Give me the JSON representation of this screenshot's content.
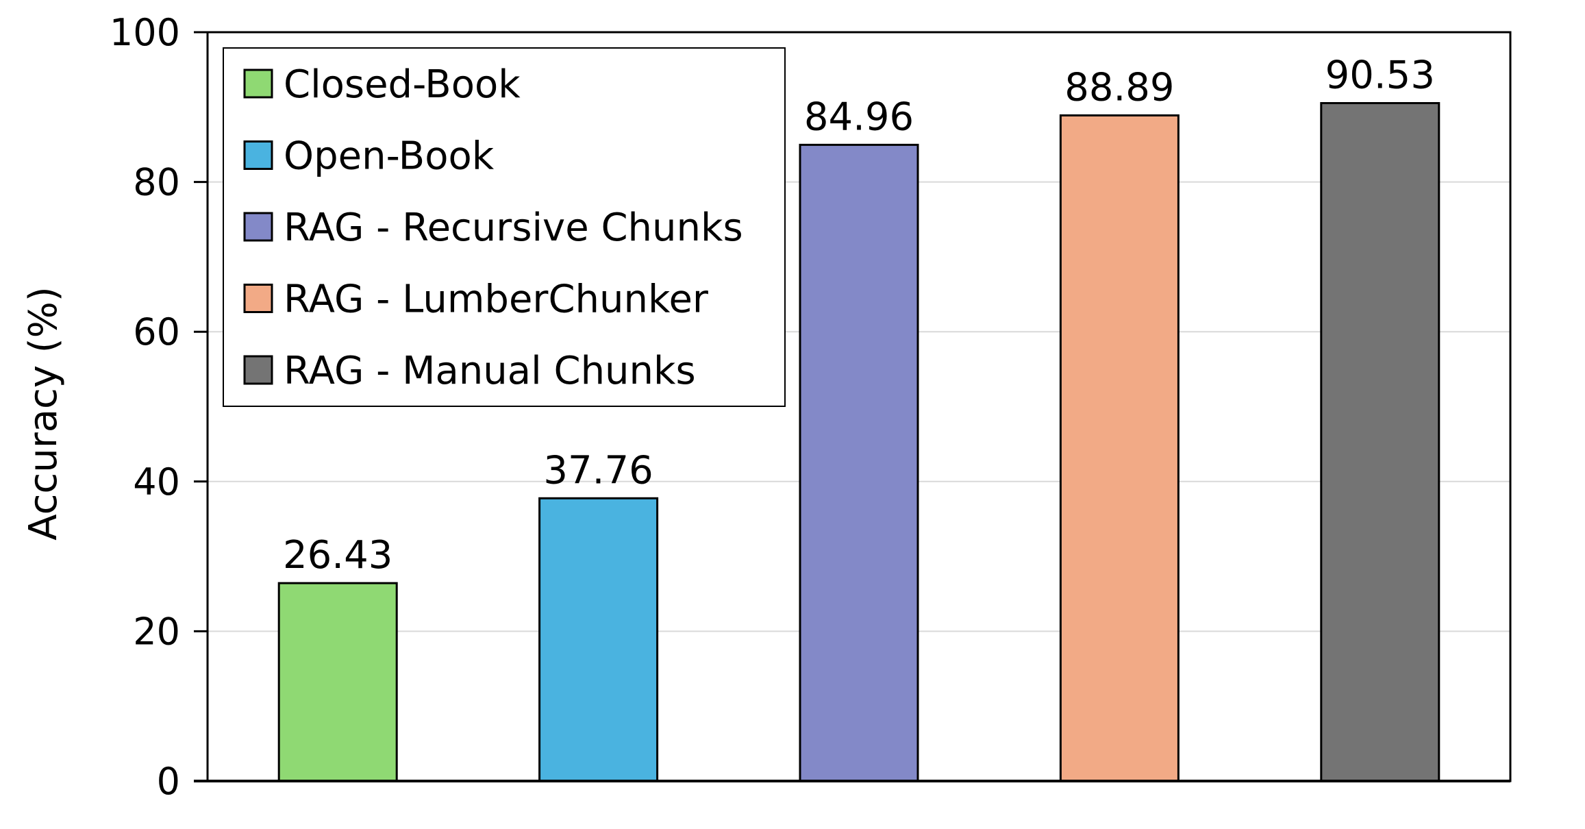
{
  "chart_data": {
    "type": "bar",
    "title": "",
    "xlabel": "",
    "ylabel": "Accuracy (%)",
    "ylim": [
      0,
      100
    ],
    "yticks": [
      0,
      20,
      40,
      60,
      80,
      100
    ],
    "grid": "horizontal",
    "legend_position": "top-left",
    "data_labels": true,
    "series": [
      {
        "name": "Closed-Book",
        "value": 26.43,
        "label": "26.43",
        "color": "#8fd973"
      },
      {
        "name": "Open-Book",
        "value": 37.76,
        "label": "37.76",
        "color": "#4ab3e0"
      },
      {
        "name": "RAG - Recursive Chunks",
        "value": 84.96,
        "label": "84.96",
        "color": "#8389c8"
      },
      {
        "name": "RAG - LumberChunker",
        "value": 88.89,
        "label": "88.89",
        "color": "#f2aa86"
      },
      {
        "name": "RAG - Manual Chunks",
        "value": 90.53,
        "label": "90.53",
        "color": "#747474"
      }
    ]
  }
}
